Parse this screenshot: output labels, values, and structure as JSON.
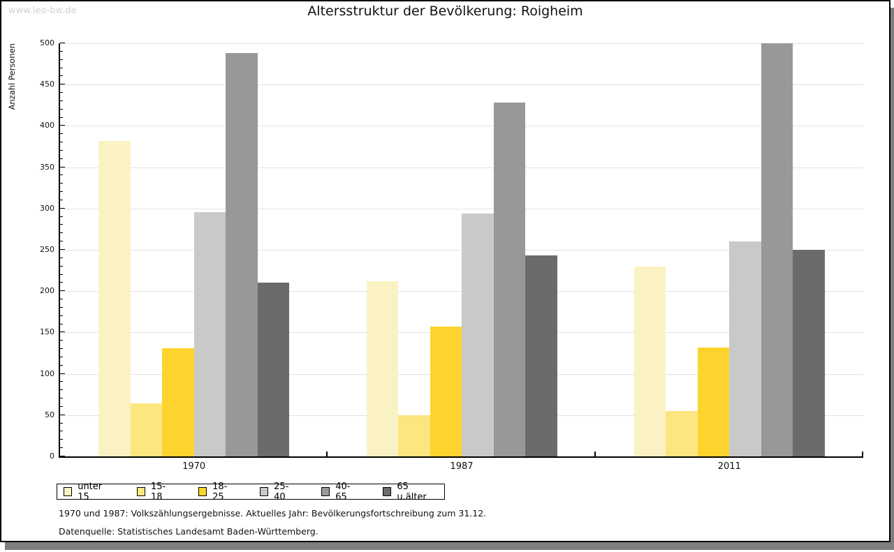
{
  "watermark": "www.leo-bw.de",
  "title": "Altersstruktur der Bevölkerung: Roigheim",
  "footnotes": [
    "1970 und 1987: Volkszählungsergebnisse. Aktuelles Jahr: Bevölkerungsfortschreibung zum 31.12.",
    "Datenquelle: Statistisches Landesamt Baden-Württemberg."
  ],
  "colors": {
    "frame_border": "#000000",
    "frame_shadow": "#7e7e7e",
    "gridline": "#e2e2e2",
    "watermark": "#d2d2d2",
    "axis": "#000000"
  },
  "chart_data": {
    "type": "bar",
    "title": "Altersstruktur der Bevölkerung: Roigheim",
    "xlabel": "",
    "ylabel": "Anzahl Personen",
    "categories": [
      "1970",
      "1987",
      "2011"
    ],
    "series": [
      {
        "name": "unter 15",
        "color": "#fbf2c4",
        "values": [
          382,
          212,
          230
        ]
      },
      {
        "name": "15-18",
        "color": "#fce67f",
        "values": [
          64,
          50,
          55
        ]
      },
      {
        "name": "18-25",
        "color": "#fcd42d",
        "values": [
          131,
          157,
          132
        ]
      },
      {
        "name": "25-40",
        "color": "#c9c9c9",
        "values": [
          296,
          294,
          260
        ]
      },
      {
        "name": "40-65",
        "color": "#989898",
        "values": [
          488,
          428,
          500
        ]
      },
      {
        "name": "65 u.älter",
        "color": "#6b6b6b",
        "values": [
          210,
          243,
          250
        ]
      }
    ],
    "ylim": [
      0,
      500
    ],
    "ytick_major_step": 50,
    "ytick_minor_step": 10,
    "grid": true,
    "legend_position": "bottom"
  }
}
